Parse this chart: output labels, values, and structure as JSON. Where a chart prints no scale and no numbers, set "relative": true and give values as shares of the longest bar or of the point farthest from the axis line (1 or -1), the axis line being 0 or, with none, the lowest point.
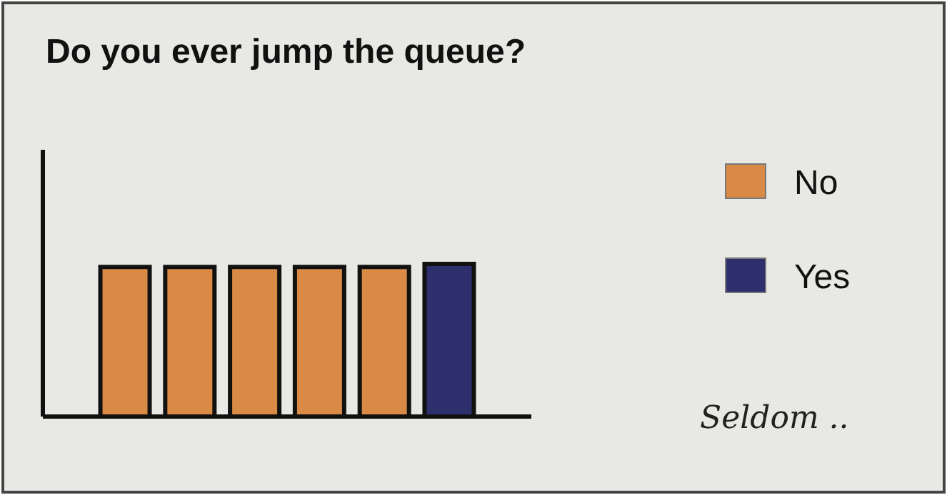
{
  "chart_data": {
    "type": "bar",
    "title": "Do you ever jump the queue?",
    "relative": true,
    "categories": [
      null,
      null,
      null,
      null,
      null,
      null
    ],
    "series": [
      {
        "name": "No",
        "color": "#d98a45",
        "values": [
          0.98,
          0.98,
          0.98,
          0.98,
          0.98,
          0
        ]
      },
      {
        "name": "Yes",
        "color": "#2e306e",
        "values": [
          0,
          0,
          0,
          0,
          0,
          1
        ]
      }
    ],
    "stacked": true,
    "legend": "right",
    "annotations": [
      "Seldom .."
    ]
  }
}
